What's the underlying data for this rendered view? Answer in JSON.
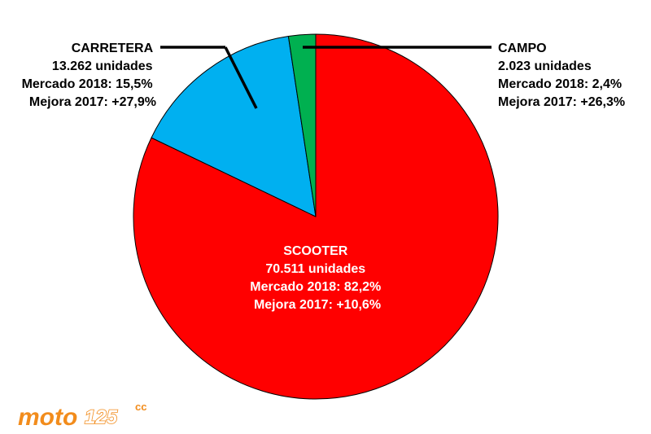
{
  "chart_data": {
    "type": "pie",
    "start_angle_deg": 0,
    "direction": "clockwise",
    "slices": [
      {
        "id": "scooter",
        "value": 82.2,
        "color": "#ff0000",
        "label_lines": [
          "SCOOTER",
          "70.511 unidades",
          "Mercado 2018: 82,2%",
          "Mejora 2017: +10,6%"
        ]
      },
      {
        "id": "carretera",
        "value": 15.5,
        "color": "#00b0f0",
        "label_lines": [
          "CARRETERA",
          "13.262 unidades",
          "Mercado 2018: 15,5%",
          "Mejora 2017: +27,9%"
        ]
      },
      {
        "id": "campo",
        "value": 2.4,
        "color": "#00b050",
        "label_lines": [
          "CAMPO",
          "2.023 unidades",
          "Mercado 2018: 2,4%",
          "Mejora 2017: +26,3%"
        ]
      }
    ],
    "legend": "none"
  },
  "logo": {
    "brand": "moto",
    "number": "125",
    "unit": "cc"
  }
}
